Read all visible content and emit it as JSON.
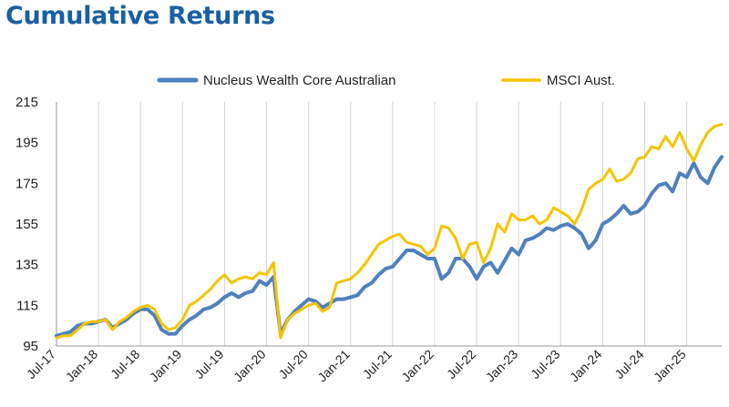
{
  "page": {
    "title": "Cumulative Returns"
  },
  "colors": {
    "title": "#1a5fa3",
    "grid": "#d4d4d4",
    "text": "#222222"
  },
  "chart_data": {
    "type": "line",
    "title": "Cumulative Returns",
    "xlabel": "",
    "ylabel": "",
    "ylim": [
      95,
      215
    ],
    "yticks": [
      95,
      115,
      135,
      155,
      175,
      195,
      215
    ],
    "xticks": [
      "Jul-17",
      "Jan-18",
      "Jul-18",
      "Jan-19",
      "Jul-19",
      "Jan-20",
      "Jul-20",
      "Jan-21",
      "Jul-21",
      "Jan-22",
      "Jul-22",
      "Jan-23",
      "Jul-23",
      "Jan-24",
      "Jul-24",
      "Jan-25"
    ],
    "grid": "vertical",
    "legend_position": "top",
    "x": [
      "Jul-17",
      "Aug-17",
      "Sep-17",
      "Oct-17",
      "Nov-17",
      "Dec-17",
      "Jan-18",
      "Feb-18",
      "Mar-18",
      "Apr-18",
      "May-18",
      "Jun-18",
      "Jul-18",
      "Aug-18",
      "Sep-18",
      "Oct-18",
      "Nov-18",
      "Dec-18",
      "Jan-19",
      "Feb-19",
      "Mar-19",
      "Apr-19",
      "May-19",
      "Jun-19",
      "Jul-19",
      "Aug-19",
      "Sep-19",
      "Oct-19",
      "Nov-19",
      "Dec-19",
      "Jan-20",
      "Feb-20",
      "Mar-20",
      "Apr-20",
      "May-20",
      "Jun-20",
      "Jul-20",
      "Aug-20",
      "Sep-20",
      "Oct-20",
      "Nov-20",
      "Dec-20",
      "Jan-21",
      "Feb-21",
      "Mar-21",
      "Apr-21",
      "May-21",
      "Jun-21",
      "Jul-21",
      "Aug-21",
      "Sep-21",
      "Oct-21",
      "Nov-21",
      "Dec-21",
      "Jan-22",
      "Feb-22",
      "Mar-22",
      "Apr-22",
      "May-22",
      "Jun-22",
      "Jul-22",
      "Aug-22",
      "Sep-22",
      "Oct-22",
      "Nov-22",
      "Dec-22",
      "Jan-23",
      "Feb-23",
      "Mar-23",
      "Apr-23",
      "May-23",
      "Jun-23",
      "Jul-23",
      "Aug-23",
      "Sep-23",
      "Oct-23",
      "Nov-23",
      "Dec-23",
      "Jan-24",
      "Feb-24",
      "Mar-24",
      "Apr-24",
      "May-24",
      "Jun-24",
      "Jul-24",
      "Aug-24",
      "Sep-24",
      "Oct-24",
      "Nov-24",
      "Dec-24",
      "Jan-25",
      "Feb-25",
      "Mar-25",
      "Apr-25",
      "May-25",
      "Jun-25"
    ],
    "series": [
      {
        "name": "Nucleus Wealth Core Australian",
        "color": "#4f81bd",
        "values": [
          100,
          101,
          102,
          105,
          106,
          106,
          107,
          108,
          104,
          106,
          108,
          111,
          113,
          113,
          110,
          103,
          101,
          101,
          105,
          108,
          110,
          113,
          114,
          116,
          119,
          121,
          119,
          121,
          122,
          127,
          125,
          129,
          101,
          108,
          112,
          115,
          118,
          117,
          114,
          116,
          118,
          118,
          119,
          120,
          124,
          126,
          130,
          133,
          134,
          138,
          142,
          142,
          140,
          138,
          138,
          128,
          131,
          138,
          138,
          134,
          128,
          134,
          136,
          131,
          137,
          143,
          140,
          147,
          148,
          150,
          153,
          152,
          154,
          155,
          153,
          150,
          143,
          147,
          155,
          157,
          160,
          164,
          160,
          161,
          164,
          170,
          174,
          175,
          171,
          180,
          178,
          185,
          178,
          175,
          183,
          188
        ]
      },
      {
        "name": "MSCI Aust.",
        "color": "#f5c400",
        "values": [
          99,
          100,
          100,
          103,
          106,
          107,
          107,
          108,
          103,
          107,
          109,
          112,
          114,
          115,
          113,
          106,
          103,
          104,
          108,
          115,
          117,
          120,
          123,
          127,
          130,
          126,
          128,
          129,
          128,
          131,
          130,
          136,
          99,
          108,
          111,
          113,
          115,
          116,
          112,
          114,
          126,
          127,
          128,
          131,
          135,
          140,
          145,
          147,
          149,
          150,
          146,
          145,
          144,
          140,
          143,
          154,
          153,
          148,
          138,
          145,
          146,
          136,
          143,
          155,
          151,
          160,
          157,
          157,
          159,
          155,
          157,
          163,
          161,
          159,
          155,
          162,
          172,
          175,
          177,
          182,
          176,
          177,
          180,
          187,
          188,
          193,
          192,
          198,
          193,
          200,
          192,
          186,
          194,
          200,
          203,
          204
        ]
      }
    ]
  }
}
